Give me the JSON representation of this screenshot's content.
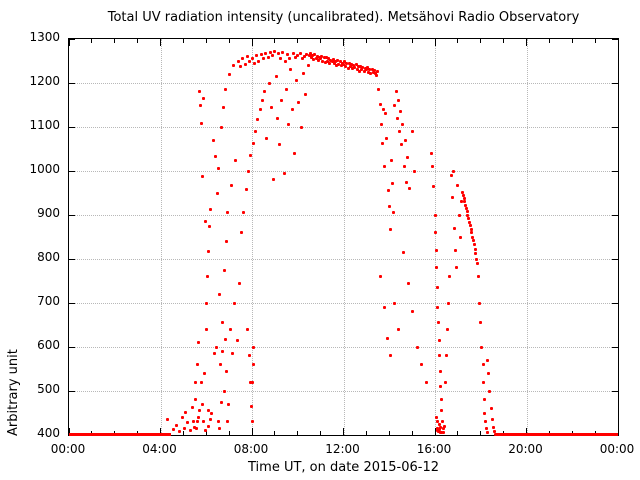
{
  "chart_data": {
    "type": "scatter",
    "title": "Total UV radiation intensity (uncalibrated). Metsähovi Radio Observatory",
    "xlabel": "Time UT, on date 2015-06-12",
    "ylabel": "Arbitrary unit",
    "xlim_hours": [
      0,
      24
    ],
    "ylim": [
      400,
      1300
    ],
    "x_major_tick_labels": [
      "00:00",
      "04:00",
      "08:00",
      "12:00",
      "16:00",
      "20:00",
      "00:00"
    ],
    "x_major_tick_hours": [
      0,
      4,
      8,
      12,
      16,
      20,
      24
    ],
    "x_minor_tick_step_hours": 1,
    "y_major_ticks": [
      400,
      500,
      600,
      700,
      800,
      900,
      1000,
      1100,
      1200,
      1300
    ],
    "grid": true,
    "legend": "none",
    "marker_color": "#ff0000",
    "axis_color": "#000000",
    "grid_color": "#b8b8b8",
    "background_color": "#ffffff",
    "baseline_value": 400,
    "baseline_segments_hours": [
      [
        0.0,
        4.45
      ],
      [
        18.68,
        24.0
      ]
    ],
    "points": [
      [
        4.3,
        436
      ],
      [
        4.55,
        412
      ],
      [
        4.7,
        422
      ],
      [
        4.85,
        408
      ],
      [
        4.95,
        440
      ],
      [
        5.05,
        415
      ],
      [
        5.1,
        452
      ],
      [
        5.2,
        428
      ],
      [
        5.3,
        410
      ],
      [
        5.38,
        462
      ],
      [
        5.45,
        430
      ],
      [
        5.5,
        418
      ],
      [
        5.52,
        480
      ],
      [
        5.55,
        520
      ],
      [
        5.58,
        415
      ],
      [
        5.6,
        560
      ],
      [
        5.62,
        430
      ],
      [
        5.65,
        610
      ],
      [
        5.68,
        440
      ],
      [
        5.7,
        1180
      ],
      [
        5.72,
        455
      ],
      [
        5.75,
        1148
      ],
      [
        5.78,
        520
      ],
      [
        5.8,
        1107
      ],
      [
        5.82,
        470
      ],
      [
        5.85,
        987
      ],
      [
        5.88,
        430
      ],
      [
        5.9,
        1165
      ],
      [
        5.92,
        540
      ],
      [
        5.95,
        885
      ],
      [
        5.98,
        410
      ],
      [
        6.0,
        640
      ],
      [
        6.02,
        700
      ],
      [
        6.05,
        760
      ],
      [
        6.08,
        420
      ],
      [
        6.1,
        818
      ],
      [
        6.12,
        455
      ],
      [
        6.15,
        874
      ],
      [
        6.18,
        435
      ],
      [
        6.2,
        912
      ],
      [
        6.25,
        448
      ],
      [
        6.3,
        1070
      ],
      [
        6.35,
        585
      ],
      [
        6.4,
        1032
      ],
      [
        6.45,
        600
      ],
      [
        6.5,
        950
      ],
      [
        6.52,
        430
      ],
      [
        6.55,
        1005
      ],
      [
        6.58,
        415
      ],
      [
        6.6,
        720
      ],
      [
        6.62,
        560
      ],
      [
        6.65,
        1100
      ],
      [
        6.68,
        475
      ],
      [
        6.7,
        655
      ],
      [
        6.72,
        590
      ],
      [
        6.75,
        1145
      ],
      [
        6.78,
        500
      ],
      [
        6.8,
        775
      ],
      [
        6.82,
        618
      ],
      [
        6.85,
        1185
      ],
      [
        6.88,
        545
      ],
      [
        6.9,
        840
      ],
      [
        6.92,
        430
      ],
      [
        6.95,
        905
      ],
      [
        6.98,
        470
      ],
      [
        7.0,
        1220
      ],
      [
        7.05,
        640
      ],
      [
        7.1,
        968
      ],
      [
        7.15,
        585
      ],
      [
        7.2,
        1240
      ],
      [
        7.25,
        700
      ],
      [
        7.3,
        1025
      ],
      [
        7.35,
        615
      ],
      [
        7.4,
        1250
      ],
      [
        7.45,
        745
      ],
      [
        7.5,
        1238
      ],
      [
        7.55,
        860
      ],
      [
        7.6,
        1255
      ],
      [
        7.65,
        905
      ],
      [
        7.7,
        1242
      ],
      [
        7.75,
        958
      ],
      [
        7.8,
        1260
      ],
      [
        7.82,
        640
      ],
      [
        7.85,
        1000
      ],
      [
        7.88,
        580
      ],
      [
        7.9,
        1248
      ],
      [
        7.92,
        520
      ],
      [
        7.95,
        1035
      ],
      [
        7.98,
        465
      ],
      [
        8.0,
        1256
      ],
      [
        8.02,
        430
      ],
      [
        8.04,
        520
      ],
      [
        8.06,
        560
      ],
      [
        8.08,
        600
      ],
      [
        8.05,
        1062
      ],
      [
        8.1,
        1245
      ],
      [
        8.15,
        1090
      ],
      [
        8.2,
        1262
      ],
      [
        8.25,
        1118
      ],
      [
        8.3,
        1250
      ],
      [
        8.35,
        1140
      ],
      [
        8.4,
        1265
      ],
      [
        8.45,
        1160
      ],
      [
        8.5,
        1255
      ],
      [
        8.55,
        1180
      ],
      [
        8.6,
        1268
      ],
      [
        8.65,
        1075
      ],
      [
        8.7,
        1258
      ],
      [
        8.75,
        1200
      ],
      [
        8.8,
        1270
      ],
      [
        8.85,
        1145
      ],
      [
        8.9,
        1262
      ],
      [
        8.95,
        980
      ],
      [
        9.0,
        1272
      ],
      [
        9.05,
        1215
      ],
      [
        9.1,
        1120
      ],
      [
        9.15,
        1268
      ],
      [
        9.2,
        1060
      ],
      [
        9.25,
        1255
      ],
      [
        9.3,
        1160
      ],
      [
        9.35,
        1270
      ],
      [
        9.4,
        995
      ],
      [
        9.45,
        1248
      ],
      [
        9.5,
        1185
      ],
      [
        9.55,
        1265
      ],
      [
        9.6,
        1105
      ],
      [
        9.65,
        1255
      ],
      [
        9.7,
        1230
      ],
      [
        9.75,
        1140
      ],
      [
        9.8,
        1268
      ],
      [
        9.85,
        1040
      ],
      [
        9.9,
        1258
      ],
      [
        9.95,
        1205
      ],
      [
        10.0,
        1262
      ],
      [
        10.05,
        1155
      ],
      [
        10.1,
        1268
      ],
      [
        10.15,
        1098
      ],
      [
        10.2,
        1255
      ],
      [
        10.25,
        1222
      ],
      [
        10.3,
        1260
      ],
      [
        10.35,
        1175
      ],
      [
        10.4,
        1265
      ],
      [
        10.45,
        1240
      ],
      [
        10.5,
        1262
      ],
      [
        10.55,
        1267
      ],
      [
        10.6,
        1257
      ],
      [
        10.65,
        1263
      ],
      [
        10.7,
        1253
      ],
      [
        10.75,
        1264
      ],
      [
        10.8,
        1256
      ],
      [
        10.85,
        1261
      ],
      [
        10.9,
        1252
      ],
      [
        10.95,
        1258
      ],
      [
        11.0,
        1256
      ],
      [
        11.05,
        1261
      ],
      [
        11.1,
        1250
      ],
      [
        11.15,
        1257
      ],
      [
        11.2,
        1247
      ],
      [
        11.25,
        1257
      ],
      [
        11.3,
        1250
      ],
      [
        11.35,
        1255
      ],
      [
        11.4,
        1245
      ],
      [
        11.45,
        1252
      ],
      [
        11.5,
        1249
      ],
      [
        11.55,
        1254
      ],
      [
        11.6,
        1244
      ],
      [
        11.65,
        1250
      ],
      [
        11.7,
        1240
      ],
      [
        11.75,
        1251
      ],
      [
        11.8,
        1243
      ],
      [
        11.85,
        1248
      ],
      [
        11.9,
        1239
      ],
      [
        11.95,
        1245
      ],
      [
        12.0,
        1243
      ],
      [
        12.05,
        1248
      ],
      [
        12.1,
        1237
      ],
      [
        12.15,
        1244
      ],
      [
        12.2,
        1234
      ],
      [
        12.25,
        1244
      ],
      [
        12.3,
        1237
      ],
      [
        12.35,
        1242
      ],
      [
        12.4,
        1232
      ],
      [
        12.45,
        1239
      ],
      [
        12.5,
        1236
      ],
      [
        12.55,
        1241
      ],
      [
        12.6,
        1231
      ],
      [
        12.65,
        1237
      ],
      [
        12.7,
        1227
      ],
      [
        12.75,
        1238
      ],
      [
        12.8,
        1230
      ],
      [
        12.85,
        1235
      ],
      [
        12.9,
        1226
      ],
      [
        12.95,
        1232
      ],
      [
        13.0,
        1230
      ],
      [
        13.05,
        1235
      ],
      [
        13.1,
        1224
      ],
      [
        13.15,
        1231
      ],
      [
        13.2,
        1221
      ],
      [
        13.25,
        1231
      ],
      [
        13.3,
        1224
      ],
      [
        13.35,
        1229
      ],
      [
        13.4,
        1222
      ],
      [
        13.45,
        1218
      ],
      [
        13.5,
        1226
      ],
      [
        13.55,
        1185
      ],
      [
        13.6,
        1152
      ],
      [
        13.65,
        1105
      ],
      [
        13.7,
        1062
      ],
      [
        13.75,
        1140
      ],
      [
        13.8,
        1010
      ],
      [
        13.85,
        1130
      ],
      [
        13.9,
        1075
      ],
      [
        13.95,
        955
      ],
      [
        14.0,
        920
      ],
      [
        14.05,
        868
      ],
      [
        14.1,
        1025
      ],
      [
        14.15,
        972
      ],
      [
        14.2,
        905
      ],
      [
        14.25,
        1150
      ],
      [
        14.3,
        1180
      ],
      [
        14.35,
        1120
      ],
      [
        14.4,
        1160
      ],
      [
        14.45,
        1090
      ],
      [
        14.5,
        1135
      ],
      [
        14.55,
        1060
      ],
      [
        14.6,
        1105
      ],
      [
        14.65,
        1010
      ],
      [
        14.7,
        1070
      ],
      [
        14.75,
        975
      ],
      [
        14.8,
        1030
      ],
      [
        14.9,
        960
      ],
      [
        15.0,
        1090
      ],
      [
        15.1,
        1000
      ],
      [
        13.62,
        760
      ],
      [
        13.78,
        690
      ],
      [
        13.92,
        620
      ],
      [
        14.06,
        580
      ],
      [
        14.22,
        700
      ],
      [
        14.42,
        640
      ],
      [
        14.62,
        815
      ],
      [
        14.82,
        745
      ],
      [
        15.02,
        680
      ],
      [
        15.22,
        600
      ],
      [
        15.42,
        560
      ],
      [
        15.62,
        520
      ],
      [
        15.85,
        1040
      ],
      [
        15.9,
        1010
      ],
      [
        15.95,
        965
      ],
      [
        16.0,
        900
      ],
      [
        16.02,
        860
      ],
      [
        16.05,
        820
      ],
      [
        16.08,
        780
      ],
      [
        16.1,
        735
      ],
      [
        16.12,
        690
      ],
      [
        16.15,
        655
      ],
      [
        16.18,
        615
      ],
      [
        16.2,
        580
      ],
      [
        16.22,
        545
      ],
      [
        16.25,
        510
      ],
      [
        16.28,
        480
      ],
      [
        16.3,
        455
      ],
      [
        16.32,
        430
      ],
      [
        16.35,
        415
      ],
      [
        16.38,
        405
      ],
      [
        16.4,
        420
      ],
      [
        16.11,
        430
      ],
      [
        16.13,
        415
      ],
      [
        16.16,
        408
      ],
      [
        16.19,
        425
      ],
      [
        16.21,
        412
      ],
      [
        16.23,
        405
      ],
      [
        16.26,
        418
      ],
      [
        16.29,
        406
      ],
      [
        16.06,
        440
      ],
      [
        16.09,
        410
      ],
      [
        16.45,
        520
      ],
      [
        16.5,
        580
      ],
      [
        16.55,
        640
      ],
      [
        16.6,
        700
      ],
      [
        16.65,
        760
      ],
      [
        16.7,
        990
      ],
      [
        16.75,
        940
      ],
      [
        16.8,
        1000
      ],
      [
        16.85,
        870
      ],
      [
        16.9,
        820
      ],
      [
        16.95,
        780
      ],
      [
        17.0,
        968
      ],
      [
        17.05,
        900
      ],
      [
        17.1,
        850
      ],
      [
        17.15,
        930
      ],
      [
        17.2,
        952
      ],
      [
        17.24,
        945
      ],
      [
        17.28,
        938
      ],
      [
        17.31,
        930
      ],
      [
        17.34,
        922
      ],
      [
        17.38,
        915
      ],
      [
        17.41,
        908
      ],
      [
        17.44,
        900
      ],
      [
        17.48,
        892
      ],
      [
        17.51,
        884
      ],
      [
        17.55,
        876
      ],
      [
        17.58,
        868
      ],
      [
        17.61,
        860
      ],
      [
        17.65,
        850
      ],
      [
        17.68,
        842
      ],
      [
        17.72,
        832
      ],
      [
        17.75,
        822
      ],
      [
        17.79,
        812
      ],
      [
        17.82,
        800
      ],
      [
        17.86,
        790
      ],
      [
        17.9,
        760
      ],
      [
        17.95,
        700
      ],
      [
        18.0,
        655
      ],
      [
        18.05,
        600
      ],
      [
        18.1,
        560
      ],
      [
        18.12,
        520
      ],
      [
        18.15,
        480
      ],
      [
        18.18,
        450
      ],
      [
        18.2,
        430
      ],
      [
        18.25,
        415
      ],
      [
        18.28,
        405
      ],
      [
        18.3,
        570
      ],
      [
        18.35,
        540
      ],
      [
        18.4,
        500
      ],
      [
        18.45,
        460
      ],
      [
        18.5,
        435
      ],
      [
        18.55,
        418
      ],
      [
        18.6,
        408
      ],
      [
        18.65,
        402
      ]
    ]
  }
}
